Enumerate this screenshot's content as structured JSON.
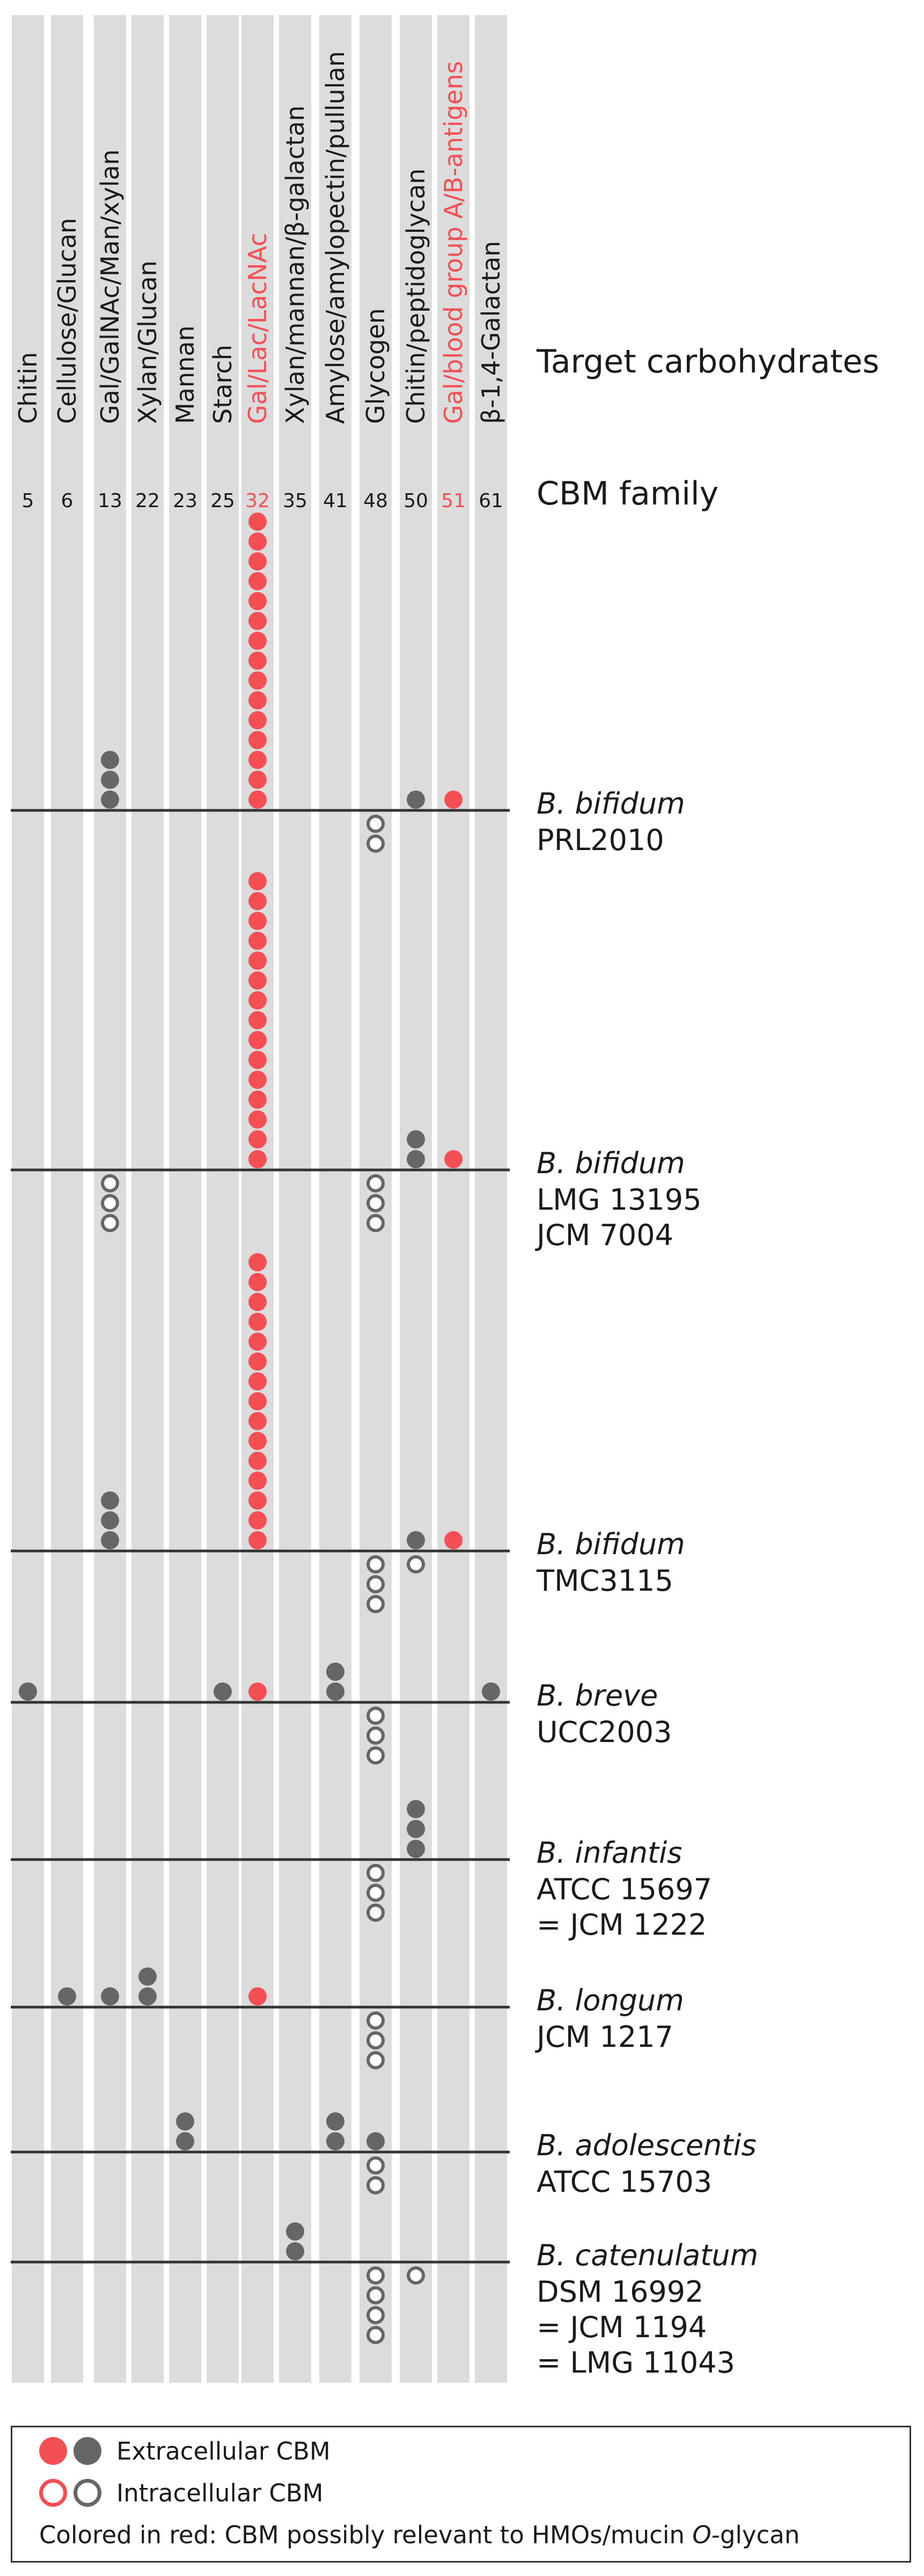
{
  "header": {
    "target_label": "Target carbohydrates",
    "family_label": "CBM family"
  },
  "colors": {
    "highlight": "#f54f56",
    "gray": "#666666",
    "column_bg": "#dcdcdc",
    "line": "#333333",
    "text": "#1a1a1a"
  },
  "columns": [
    {
      "family": "5",
      "target": "Chitin",
      "highlight": false
    },
    {
      "family": "6",
      "target": "Cellulose/Glucan",
      "highlight": false
    },
    {
      "family": "13",
      "target": "Gal/GalNAc/Man/xylan",
      "highlight": false
    },
    {
      "family": "22",
      "target": "Xylan/Glucan",
      "highlight": false
    },
    {
      "family": "23",
      "target": "Mannan",
      "highlight": false
    },
    {
      "family": "25",
      "target": "Starch",
      "highlight": false
    },
    {
      "family": "32",
      "target": "Gal/Lac/LacNAc",
      "highlight": true
    },
    {
      "family": "35",
      "target": "Xylan/mannan/β-galactan",
      "highlight": false
    },
    {
      "family": "41",
      "target": "Amylose/amylopectin/pullulan",
      "highlight": false
    },
    {
      "family": "48",
      "target": "Glycogen",
      "highlight": false
    },
    {
      "family": "50",
      "target": "Chitin/peptidoglycan",
      "highlight": false
    },
    {
      "family": "51",
      "target": "Gal/blood group A/B-antigens",
      "highlight": true
    },
    {
      "family": "61",
      "target": "β-1,4-Galactan",
      "highlight": false
    }
  ],
  "strains": [
    {
      "species": "B. bifidum",
      "lines": [
        "PRL2010"
      ],
      "extracellular": [
        0,
        0,
        3,
        0,
        0,
        0,
        15,
        0,
        0,
        0,
        1,
        1,
        0
      ],
      "intracellular": [
        0,
        0,
        0,
        0,
        0,
        0,
        0,
        0,
        0,
        2,
        0,
        0,
        0
      ]
    },
    {
      "species": "B. bifidum",
      "lines": [
        "LMG 13195",
        "JCM 7004"
      ],
      "extracellular": [
        0,
        0,
        0,
        0,
        0,
        0,
        15,
        0,
        0,
        0,
        2,
        1,
        0
      ],
      "intracellular": [
        0,
        0,
        3,
        0,
        0,
        0,
        0,
        0,
        0,
        3,
        0,
        0,
        0
      ]
    },
    {
      "species": "B. bifidum",
      "lines": [
        "TMC3115"
      ],
      "extracellular": [
        0,
        0,
        3,
        0,
        0,
        0,
        15,
        0,
        0,
        0,
        1,
        1,
        0
      ],
      "intracellular": [
        0,
        0,
        0,
        0,
        0,
        0,
        0,
        0,
        0,
        3,
        1,
        0,
        0
      ]
    },
    {
      "species": "B. breve",
      "lines": [
        "UCC2003"
      ],
      "extracellular": [
        1,
        0,
        0,
        0,
        0,
        1,
        1,
        0,
        2,
        0,
        0,
        0,
        1
      ],
      "intracellular": [
        0,
        0,
        0,
        0,
        0,
        0,
        0,
        0,
        0,
        3,
        0,
        0,
        0
      ]
    },
    {
      "species": "B. infantis",
      "lines": [
        "ATCC 15697",
        "= JCM 1222"
      ],
      "extracellular": [
        0,
        0,
        0,
        0,
        0,
        0,
        0,
        0,
        0,
        0,
        3,
        0,
        0
      ],
      "intracellular": [
        0,
        0,
        0,
        0,
        0,
        0,
        0,
        0,
        0,
        3,
        0,
        0,
        0
      ]
    },
    {
      "species": "B. longum",
      "lines": [
        "JCM 1217"
      ],
      "extracellular": [
        0,
        1,
        1,
        2,
        0,
        0,
        1,
        0,
        0,
        0,
        0,
        0,
        0
      ],
      "intracellular": [
        0,
        0,
        0,
        0,
        0,
        0,
        0,
        0,
        0,
        3,
        0,
        0,
        0
      ]
    },
    {
      "species": "B. adolescentis",
      "lines": [
        "ATCC 15703"
      ],
      "extracellular": [
        0,
        0,
        0,
        0,
        2,
        0,
        0,
        0,
        2,
        1,
        0,
        0,
        0
      ],
      "intracellular": [
        0,
        0,
        0,
        0,
        0,
        0,
        0,
        0,
        0,
        2,
        0,
        0,
        0
      ]
    },
    {
      "species": "B. catenulatum",
      "lines": [
        "DSM 16992",
        "= JCM 1194",
        "= LMG 11043"
      ],
      "extracellular": [
        0,
        0,
        0,
        0,
        0,
        0,
        0,
        2,
        0,
        0,
        0,
        0,
        0
      ],
      "intracellular": [
        0,
        0,
        0,
        0,
        0,
        0,
        0,
        0,
        0,
        4,
        1,
        0,
        0
      ]
    }
  ],
  "legend": {
    "extracellular_label": "Extracellular CBM",
    "intracellular_label": "Intracellular CBM",
    "note_prefix": "Colored in red: CBM possibly relevant to HMOs/mucin ",
    "note_italic": "O",
    "note_suffix": "-glycan"
  }
}
